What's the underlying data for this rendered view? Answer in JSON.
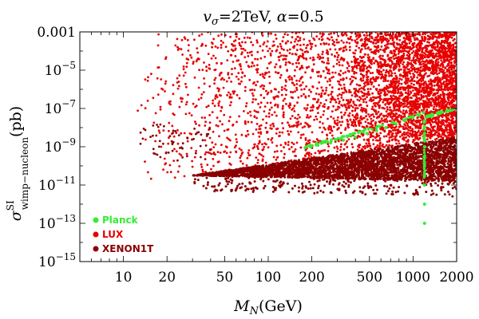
{
  "chart_data": {
    "type": "scatter",
    "title": {
      "prefix": "v",
      "prefix_sub": "σ",
      "rest": "=2TeV, ",
      "alpha": "α",
      "alpha_rest": "=0.5"
    },
    "xlabel": {
      "main": "M",
      "sub": "N",
      "unit": "(GeV)"
    },
    "ylabel": {
      "main": "σ",
      "sup": "SI",
      "sub": "wimp−nucleon",
      "unit": "(pb)"
    },
    "xscale": "log",
    "yscale": "log",
    "xlim": [
      5,
      2000
    ],
    "ylim": [
      1e-15,
      0.001
    ],
    "x_ticks": [
      {
        "value": 10,
        "label": "10"
      },
      {
        "value": 20,
        "label": "20"
      },
      {
        "value": 50,
        "label": "50"
      },
      {
        "value": 100,
        "label": "100"
      },
      {
        "value": 200,
        "label": "200"
      },
      {
        "value": 500,
        "label": "500"
      },
      {
        "value": 1000,
        "label": "1000"
      },
      {
        "value": 2000,
        "label": "2000"
      }
    ],
    "y_ticks": [
      {
        "value": 0.001,
        "label": "0.001",
        "base": "",
        "exp": ""
      },
      {
        "value": 1e-05,
        "label": "",
        "base": "10",
        "exp": "−5"
      },
      {
        "value": 1e-07,
        "label": "",
        "base": "10",
        "exp": "−7"
      },
      {
        "value": 1e-09,
        "label": "",
        "base": "10",
        "exp": "−9"
      },
      {
        "value": 1e-11,
        "label": "",
        "base": "10",
        "exp": "−11"
      },
      {
        "value": 1e-13,
        "label": "",
        "base": "10",
        "exp": "−13"
      },
      {
        "value": 1e-15,
        "label": "",
        "base": "10",
        "exp": "−15"
      }
    ],
    "legend_position": "bottom-left",
    "series": [
      {
        "name": "XENON1T",
        "color": "#8b0000",
        "description": "dense band of points between lower edge ~3e-11 at 30 GeV and upper edge ~3e-9 at 2000 GeV, plus scattered points below",
        "sample_points": [
          [
            30,
            3e-11
          ],
          [
            40,
            5e-11
          ],
          [
            60,
            1e-10
          ],
          [
            100,
            2e-10
          ],
          [
            200,
            5e-10
          ],
          [
            500,
            1.5e-09
          ],
          [
            1000,
            2e-09
          ],
          [
            2000,
            3e-09
          ],
          [
            500,
            3e-11
          ],
          [
            1500,
            1e-10
          ],
          [
            15,
            3e-09
          ],
          [
            16,
            8e-10
          ],
          [
            18,
            1e-09
          ],
          [
            12,
            2e-09
          ]
        ]
      },
      {
        "name": "LUX",
        "color": "#e60000",
        "description": "sparse-to-dense cloud above the XENON1T band, density increasing toward large M_N",
        "sample_points": [
          [
            13,
            3e-06
          ],
          [
            15,
            2e-06
          ],
          [
            14,
            1e-07
          ],
          [
            20,
            2e-06
          ],
          [
            50,
            3e-05
          ],
          [
            100,
            0.0001
          ],
          [
            200,
            3e-06
          ],
          [
            500,
            0.0001
          ],
          [
            1000,
            1e-05
          ],
          [
            2000,
            1e-06
          ]
        ]
      },
      {
        "name": "Planck",
        "color": "#33ee33",
        "description": "relic-density points along upper edge of band, with a vertical resonance near M_N ≈ 1200 GeV",
        "points": [
          [
            180,
            9e-10
          ],
          [
            220,
            1.2e-09
          ],
          [
            270,
            1.6e-09
          ],
          [
            330,
            2.2e-09
          ],
          [
            400,
            3.2e-09
          ],
          [
            480,
            5e-09
          ],
          [
            560,
            7e-09
          ],
          [
            650,
            1e-08
          ],
          [
            760,
            1.6e-08
          ],
          [
            880,
            2.4e-08
          ],
          [
            1000,
            3.5e-08
          ],
          [
            1100,
            5e-08
          ],
          [
            1180,
            6e-08
          ],
          [
            1250,
            4e-08
          ],
          [
            1350,
            5e-08
          ],
          [
            1500,
            6e-08
          ],
          [
            1700,
            7e-08
          ],
          [
            1900,
            9e-08
          ],
          [
            1200,
            2e-08
          ],
          [
            1200,
            5e-09
          ],
          [
            1200,
            1e-09
          ],
          [
            1200,
            3e-10
          ],
          [
            1200,
            1e-10
          ],
          [
            1200,
            3e-11
          ],
          [
            1200,
            1e-11
          ],
          [
            1200,
            1e-12
          ],
          [
            1200,
            1e-13
          ]
        ]
      }
    ],
    "legend": [
      {
        "name": "Planck",
        "color": "#33ee33"
      },
      {
        "name": "LUX",
        "color": "#e60000"
      },
      {
        "name": "XENON1T",
        "color": "#8b0000"
      }
    ]
  }
}
